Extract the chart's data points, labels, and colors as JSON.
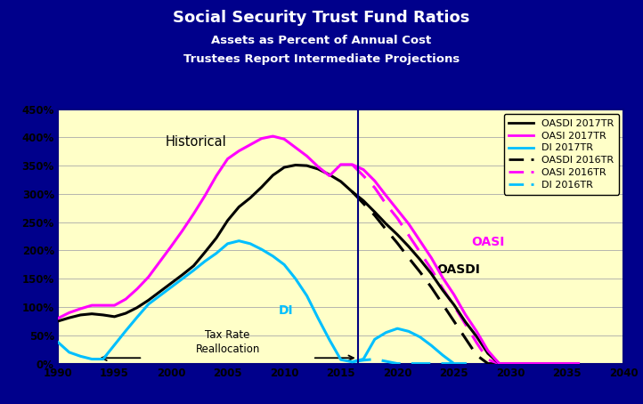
{
  "title": "Social Security Trust Fund Ratios",
  "subtitle1": "Assets as Percent of Annual Cost",
  "subtitle2": "Trustees Report Intermediate Projections",
  "bg_outer": "#00008B",
  "bg_inner": "#FFFFC8",
  "xlim": [
    1990,
    2040
  ],
  "ylim": [
    0.0,
    4.5
  ],
  "yticks": [
    0.0,
    0.5,
    1.0,
    1.5,
    2.0,
    2.5,
    3.0,
    3.5,
    4.0,
    4.5
  ],
  "ytick_labels": [
    "0%",
    "50%",
    "100%",
    "150%",
    "200%",
    "250%",
    "300%",
    "350%",
    "400%",
    "450%"
  ],
  "xticks": [
    1990,
    1995,
    2000,
    2005,
    2010,
    2015,
    2020,
    2025,
    2030,
    2035,
    2040
  ],
  "vertical_line_x": 2016.5,
  "oasdi_2017_x": [
    1990,
    1991,
    1992,
    1993,
    1994,
    1995,
    1996,
    1997,
    1998,
    1999,
    2000,
    2001,
    2002,
    2003,
    2004,
    2005,
    2006,
    2007,
    2008,
    2009,
    2010,
    2011,
    2012,
    2013,
    2014,
    2015,
    2016,
    2017,
    2018,
    2019,
    2020,
    2021,
    2022,
    2023,
    2024,
    2025,
    2026,
    2027,
    2028,
    2029,
    2030,
    2031,
    2032,
    2033,
    2034,
    2035,
    2036
  ],
  "oasdi_2017_y": [
    0.75,
    0.81,
    0.86,
    0.88,
    0.86,
    0.83,
    0.89,
    0.99,
    1.12,
    1.27,
    1.42,
    1.57,
    1.73,
    1.97,
    2.22,
    2.53,
    2.77,
    2.93,
    3.12,
    3.33,
    3.47,
    3.51,
    3.5,
    3.44,
    3.34,
    3.22,
    3.04,
    2.88,
    2.68,
    2.47,
    2.28,
    2.07,
    1.84,
    1.59,
    1.3,
    1.04,
    0.74,
    0.48,
    0.18,
    0.0,
    0.0,
    0.0,
    0.0,
    0.0,
    0.0,
    0.0,
    0.0
  ],
  "oasi_2017_x": [
    1990,
    1991,
    1992,
    1993,
    1994,
    1995,
    1996,
    1997,
    1998,
    1999,
    2000,
    2001,
    2002,
    2003,
    2004,
    2005,
    2006,
    2007,
    2008,
    2009,
    2010,
    2011,
    2012,
    2013,
    2014,
    2015,
    2016,
    2017,
    2018,
    2019,
    2020,
    2021,
    2022,
    2023,
    2024,
    2025,
    2026,
    2027,
    2028,
    2029,
    2030,
    2031,
    2032,
    2033,
    2034,
    2035,
    2036
  ],
  "oasi_2017_y": [
    0.8,
    0.9,
    0.97,
    1.03,
    1.03,
    1.03,
    1.14,
    1.32,
    1.53,
    1.8,
    2.07,
    2.35,
    2.65,
    2.97,
    3.32,
    3.62,
    3.76,
    3.87,
    3.98,
    4.02,
    3.97,
    3.82,
    3.67,
    3.48,
    3.32,
    3.52,
    3.52,
    3.43,
    3.23,
    2.97,
    2.72,
    2.47,
    2.17,
    1.87,
    1.52,
    1.22,
    0.87,
    0.57,
    0.23,
    0.0,
    0.0,
    0.0,
    0.0,
    0.0,
    0.0,
    0.0,
    0.0
  ],
  "di_2017_x": [
    1990,
    1991,
    1992,
    1993,
    1994,
    1995,
    1996,
    1997,
    1998,
    1999,
    2000,
    2001,
    2002,
    2003,
    2004,
    2005,
    2006,
    2007,
    2008,
    2009,
    2010,
    2011,
    2012,
    2013,
    2014,
    2015,
    2016,
    2017,
    2018,
    2019,
    2020,
    2021,
    2022,
    2023,
    2024,
    2025,
    2026
  ],
  "di_2017_y": [
    0.38,
    0.2,
    0.13,
    0.08,
    0.08,
    0.33,
    0.58,
    0.82,
    1.05,
    1.2,
    1.35,
    1.5,
    1.65,
    1.81,
    1.95,
    2.12,
    2.17,
    2.12,
    2.02,
    1.9,
    1.75,
    1.5,
    1.2,
    0.8,
    0.42,
    0.07,
    0.03,
    0.08,
    0.43,
    0.55,
    0.62,
    0.57,
    0.47,
    0.32,
    0.15,
    0.0,
    0.0
  ],
  "oasdi_2016_x": [
    2016,
    2017,
    2018,
    2019,
    2020,
    2021,
    2022,
    2023,
    2024,
    2025,
    2026,
    2027,
    2028,
    2029,
    2030
  ],
  "oasdi_2016_y": [
    3.04,
    2.83,
    2.62,
    2.37,
    2.13,
    1.87,
    1.62,
    1.35,
    1.05,
    0.75,
    0.45,
    0.15,
    0.0,
    0.0,
    0.0
  ],
  "oasi_2016_x": [
    2016,
    2017,
    2018,
    2019,
    2020,
    2021,
    2022,
    2023,
    2024,
    2025,
    2026,
    2027,
    2028,
    2029,
    2030
  ],
  "oasi_2016_y": [
    3.52,
    3.32,
    3.11,
    2.82,
    2.57,
    2.27,
    1.97,
    1.67,
    1.33,
    1.02,
    0.7,
    0.37,
    0.07,
    0.0,
    0.0
  ],
  "di_2016_x": [
    2016,
    2017,
    2018,
    2019,
    2020,
    2021,
    2022,
    2023,
    2024,
    2025
  ],
  "di_2016_y": [
    0.03,
    0.06,
    0.08,
    0.04,
    0.0,
    0.0,
    0.0,
    0.0,
    0.0,
    0.0
  ]
}
